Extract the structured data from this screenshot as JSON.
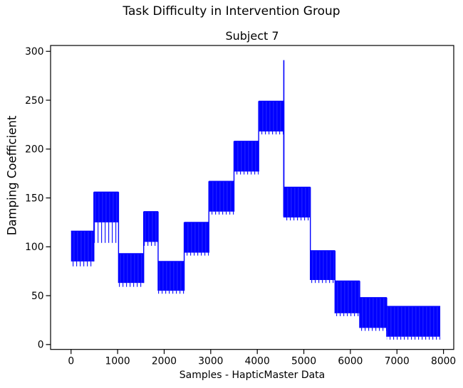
{
  "chart_data": {
    "type": "line",
    "suptitle": "Task Difficulty in Intervention Group",
    "title": "Subject 7",
    "xlabel": "Samples - HapticMaster Data",
    "ylabel": "Damping Coefficient",
    "line_color": "#0000ff",
    "axis_color": "#000000",
    "background_color": "#ffffff",
    "grid": false,
    "x_ticks": [
      0,
      1000,
      2000,
      3000,
      4000,
      5000,
      6000,
      7000,
      8000
    ],
    "y_ticks": [
      0,
      50,
      100,
      150,
      200,
      250,
      300
    ],
    "xlim": [
      -440,
      8220
    ],
    "ylim": [
      -5,
      306
    ],
    "segments": [
      {
        "start": 0,
        "end": 490,
        "low": 85,
        "high": 116,
        "fringe_low": 80
      },
      {
        "start": 490,
        "end": 1020,
        "low": 125,
        "high": 156,
        "fringe_low": 104
      },
      {
        "start": 1020,
        "end": 1560,
        "low": 63,
        "high": 93,
        "fringe_low": 59
      },
      {
        "start": 1560,
        "end": 1870,
        "low": 105,
        "high": 136,
        "fringe_low": 101
      },
      {
        "start": 1870,
        "end": 2430,
        "low": 55,
        "high": 85,
        "fringe_low": 52
      },
      {
        "start": 2430,
        "end": 2960,
        "low": 94,
        "high": 125,
        "fringe_low": 91
      },
      {
        "start": 2960,
        "end": 3500,
        "low": 136,
        "high": 167,
        "fringe_low": 133
      },
      {
        "start": 3500,
        "end": 4030,
        "low": 177,
        "high": 208,
        "fringe_low": 174
      },
      {
        "start": 4030,
        "end": 4570,
        "low": 218,
        "high": 249,
        "fringe_low": 215
      },
      {
        "start": 4570,
        "end": 5140,
        "low": 130,
        "high": 161,
        "fringe_low": 127
      },
      {
        "start": 5140,
        "end": 5670,
        "low": 66,
        "high": 96,
        "fringe_low": 63
      },
      {
        "start": 5670,
        "end": 6200,
        "low": 32,
        "high": 65,
        "fringe_low": 29
      },
      {
        "start": 6200,
        "end": 6780,
        "low": 17,
        "high": 48,
        "fringe_low": 14
      },
      {
        "start": 6780,
        "end": 7930,
        "low": 8,
        "high": 39,
        "fringe_low": 5
      }
    ],
    "spike": {
      "sample": 4570,
      "from": 131,
      "peak": 291
    }
  }
}
